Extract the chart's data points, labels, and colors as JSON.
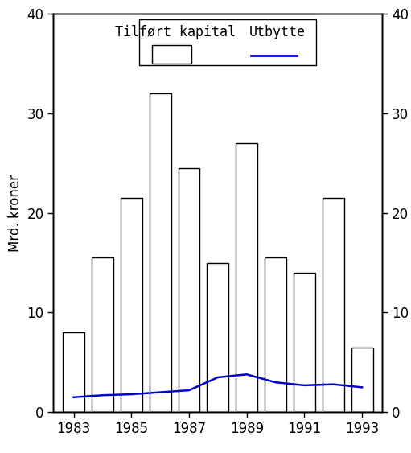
{
  "years": [
    1983,
    1984,
    1985,
    1986,
    1987,
    1988,
    1989,
    1990,
    1991,
    1992,
    1993
  ],
  "bar_values": [
    8.0,
    15.5,
    21.5,
    32.0,
    24.5,
    15.0,
    27.0,
    15.5,
    14.0,
    21.5,
    6.5
  ],
  "line_values": [
    1.5,
    1.7,
    1.8,
    2.0,
    2.2,
    3.5,
    3.8,
    3.0,
    2.7,
    2.8,
    2.5
  ],
  "bar_color": "#ffffff",
  "bar_edgecolor": "#000000",
  "line_color": "#0000cc",
  "ylabel": "Mrd. kroner",
  "ylim": [
    0,
    40
  ],
  "yticks": [
    0,
    10,
    20,
    30,
    40
  ],
  "xticks": [
    1983,
    1985,
    1987,
    1989,
    1991,
    1993
  ],
  "legend_label_bar": "Tilført kapital",
  "legend_label_line": "Utbytte",
  "background_color": "#ffffff",
  "bar_width": 0.75,
  "axis_fontsize": 12,
  "tick_fontsize": 12,
  "legend_fontsize": 12
}
